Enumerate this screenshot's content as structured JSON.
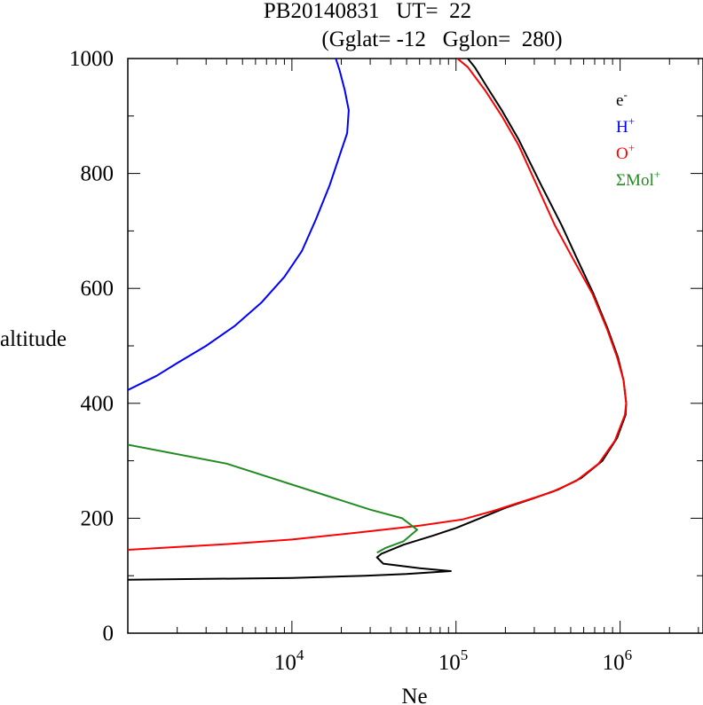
{
  "chart_data": {
    "type": "line",
    "title": "PB20140831   UT=  22",
    "subtitle": "(Gglat= -12   Gglon=  280)",
    "xlabel": "Ne",
    "ylabel": "altitude",
    "xscale": "log",
    "xlim": [
      1000,
      3200000
    ],
    "ylim": [
      0,
      1000
    ],
    "y_ticks": [
      {
        "value": 0,
        "label": "0"
      },
      {
        "value": 200,
        "label": "200"
      },
      {
        "value": 400,
        "label": "400"
      },
      {
        "value": 600,
        "label": "600"
      },
      {
        "value": 800,
        "label": "800"
      },
      {
        "value": 1000,
        "label": "1000"
      }
    ],
    "x_ticks": [
      {
        "value": 10000,
        "base": "10",
        "exp": "4"
      },
      {
        "value": 100000,
        "base": "10",
        "exp": "5"
      },
      {
        "value": 1000000,
        "base": "10",
        "exp": "6"
      }
    ],
    "legend_position": "top-right",
    "grid": false,
    "series": [
      {
        "name": "e",
        "sup": "-",
        "color": "#000000",
        "points": [
          [
            1000,
            93
          ],
          [
            10000,
            96
          ],
          [
            28000,
            100
          ],
          [
            50000,
            103
          ],
          [
            93000,
            108
          ],
          [
            60000,
            113
          ],
          [
            36000,
            121
          ],
          [
            33000,
            132
          ],
          [
            35000,
            138
          ],
          [
            48000,
            154
          ],
          [
            73000,
            170
          ],
          [
            100000,
            183
          ],
          [
            140000,
            200
          ],
          [
            200000,
            218
          ],
          [
            300000,
            235
          ],
          [
            420000,
            250
          ],
          [
            580000,
            270
          ],
          [
            780000,
            300
          ],
          [
            960000,
            340
          ],
          [
            1080000,
            380
          ],
          [
            1090000,
            400
          ],
          [
            1050000,
            440
          ],
          [
            970000,
            480
          ],
          [
            840000,
            530
          ],
          [
            690000,
            590
          ],
          [
            550000,
            650
          ],
          [
            440000,
            710
          ],
          [
            330000,
            780
          ],
          [
            240000,
            860
          ],
          [
            190000,
            910
          ],
          [
            155000,
            950
          ],
          [
            130000,
            985
          ],
          [
            118000,
            1000
          ]
        ]
      },
      {
        "name": "H",
        "sup": "+",
        "color": "#0000ff",
        "points": [
          [
            1000,
            423
          ],
          [
            1500,
            448
          ],
          [
            2000,
            470
          ],
          [
            3000,
            500
          ],
          [
            4500,
            535
          ],
          [
            6500,
            575
          ],
          [
            9000,
            620
          ],
          [
            11500,
            665
          ],
          [
            14000,
            720
          ],
          [
            17000,
            780
          ],
          [
            20000,
            840
          ],
          [
            21700,
            870
          ],
          [
            22200,
            910
          ],
          [
            21000,
            945
          ],
          [
            19500,
            980
          ],
          [
            18500,
            1000
          ]
        ]
      },
      {
        "name": "O",
        "sup": "+",
        "color": "#ff0000",
        "points": [
          [
            1000,
            145
          ],
          [
            4000,
            155
          ],
          [
            10000,
            163
          ],
          [
            25000,
            175
          ],
          [
            60000,
            187
          ],
          [
            110000,
            198
          ],
          [
            170000,
            213
          ],
          [
            260000,
            230
          ],
          [
            380000,
            245
          ],
          [
            540000,
            265
          ],
          [
            740000,
            295
          ],
          [
            930000,
            335
          ],
          [
            1070000,
            380
          ],
          [
            1090000,
            400
          ],
          [
            1050000,
            440
          ],
          [
            960000,
            480
          ],
          [
            830000,
            530
          ],
          [
            680000,
            590
          ],
          [
            520000,
            650
          ],
          [
            400000,
            710
          ],
          [
            310000,
            780
          ],
          [
            240000,
            850
          ],
          [
            190000,
            900
          ],
          [
            150000,
            945
          ],
          [
            118000,
            985
          ],
          [
            102000,
            1000
          ]
        ]
      },
      {
        "name": "ΣMol",
        "sup": "+",
        "color": "#228b22",
        "points": [
          [
            1000,
            328
          ],
          [
            4000,
            295
          ],
          [
            16000,
            240
          ],
          [
            30000,
            215
          ],
          [
            47000,
            200
          ],
          [
            58000,
            180
          ],
          [
            48000,
            160
          ],
          [
            37000,
            148
          ],
          [
            33000,
            140
          ]
        ]
      }
    ]
  }
}
